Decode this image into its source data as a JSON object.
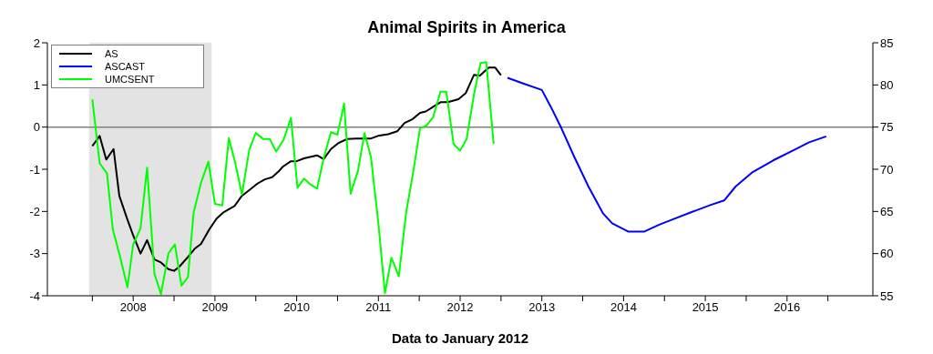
{
  "chart_data": {
    "type": "line",
    "title": "Animal Spirits in America",
    "xlabel": "Data to January 2012",
    "xlim": [
      2007.45,
      2017.55
    ],
    "xticks": [
      {
        "value": 2008,
        "label": null
      },
      {
        "value": 2008.5,
        "label": "2008"
      },
      {
        "value": 2009,
        "label": null
      },
      {
        "value": 2009.5,
        "label": "2009"
      },
      {
        "value": 2010,
        "label": null
      },
      {
        "value": 2010.5,
        "label": "2010"
      },
      {
        "value": 2011,
        "label": null
      },
      {
        "value": 2011.5,
        "label": "2011"
      },
      {
        "value": 2012,
        "label": null
      },
      {
        "value": 2012.5,
        "label": "2012"
      },
      {
        "value": 2013,
        "label": null
      },
      {
        "value": 2013.5,
        "label": "2013"
      },
      {
        "value": 2014,
        "label": null
      },
      {
        "value": 2014.5,
        "label": "2014"
      },
      {
        "value": 2015,
        "label": null
      },
      {
        "value": 2015.5,
        "label": "2015"
      },
      {
        "value": 2016,
        "label": null
      },
      {
        "value": 2016.5,
        "label": "2016"
      },
      {
        "value": 2017,
        "label": null
      }
    ],
    "ylim": [
      -4,
      2
    ],
    "yticks": [
      -4,
      -3,
      -2,
      -1,
      0,
      1,
      2
    ],
    "y2lim": [
      55,
      85
    ],
    "y2ticks": [
      55,
      60,
      65,
      70,
      75,
      80,
      85
    ],
    "grid": false,
    "legend": "top left",
    "marker": "none",
    "line_style": "solid",
    "ref_lines": [
      {
        "axis": "y",
        "value": 0,
        "color": "#808080"
      }
    ],
    "bands": [
      {
        "axis": "x",
        "from": 2007.96,
        "to": 2009.46,
        "color": "#e3e3e3"
      }
    ],
    "series": [
      {
        "name": "AS",
        "color": "#000000",
        "x": [
          2008.0,
          2008.09,
          2008.17,
          2008.26,
          2008.33,
          2008.42,
          2008.5,
          2008.59,
          2008.67,
          2008.76,
          2008.84,
          2008.93,
          2009.0,
          2009.06,
          2009.17,
          2009.25,
          2009.33,
          2009.43,
          2009.52,
          2009.6,
          2009.74,
          2009.83,
          2009.93,
          2010.02,
          2010.11,
          2010.2,
          2010.28,
          2010.33,
          2010.43,
          2010.5,
          2010.59,
          2010.75,
          2010.83,
          2010.92,
          2011.01,
          2011.12,
          2011.23,
          2011.34,
          2011.41,
          2011.51,
          2011.62,
          2011.73,
          2011.82,
          2011.92,
          2012.01,
          2012.08,
          2012.17,
          2012.26,
          2012.35,
          2012.48,
          2012.57,
          2012.67,
          2012.74,
          2012.85,
          2012.93,
          2013.0
        ],
        "values": [
          -0.45,
          -0.21,
          -0.77,
          -0.52,
          -1.63,
          -2.14,
          -2.57,
          -3.0,
          -2.68,
          -3.14,
          -3.21,
          -3.37,
          -3.41,
          -3.32,
          -3.08,
          -2.89,
          -2.77,
          -2.43,
          -2.17,
          -2.03,
          -1.87,
          -1.63,
          -1.48,
          -1.34,
          -1.24,
          -1.19,
          -1.05,
          -0.94,
          -0.81,
          -0.81,
          -0.74,
          -0.67,
          -0.76,
          -0.52,
          -0.38,
          -0.28,
          -0.27,
          -0.27,
          -0.27,
          -0.2,
          -0.17,
          -0.1,
          0.1,
          0.19,
          0.34,
          0.37,
          0.48,
          0.59,
          0.59,
          0.66,
          0.81,
          1.24,
          1.22,
          1.41,
          1.41,
          1.23
        ]
      },
      {
        "name": "ASCAST",
        "color": "#0000ff",
        "x": [
          2013.08,
          2013.28,
          2013.5,
          2013.61,
          2013.74,
          2013.9,
          2014.07,
          2014.25,
          2014.36,
          2014.56,
          2014.75,
          2014.93,
          2015.1,
          2015.34,
          2015.56,
          2015.73,
          2015.87,
          2016.07,
          2016.33,
          2016.59,
          2016.77,
          2016.98
        ],
        "values": [
          1.17,
          1.03,
          0.88,
          0.48,
          -0.03,
          -0.72,
          -1.41,
          -2.05,
          -2.28,
          -2.48,
          -2.48,
          -2.32,
          -2.19,
          -2.01,
          -1.85,
          -1.74,
          -1.41,
          -1.08,
          -0.79,
          -0.54,
          -0.36,
          -0.22
        ]
      },
      {
        "name": "UMCSENT",
        "color": "#00ff00",
        "axis": "y2",
        "x": [
          2008.0,
          2008.09,
          2008.18,
          2008.25,
          2008.34,
          2008.43,
          2008.5,
          2008.59,
          2008.67,
          2008.76,
          2008.84,
          2008.93,
          2009.01,
          2009.09,
          2009.17,
          2009.24,
          2009.33,
          2009.42,
          2009.5,
          2009.59,
          2009.67,
          2009.75,
          2009.83,
          2009.92,
          2010.0,
          2010.09,
          2010.17,
          2010.25,
          2010.34,
          2010.43,
          2010.51,
          2010.59,
          2010.67,
          2010.75,
          2010.83,
          2010.92,
          2011.0,
          2011.08,
          2011.16,
          2011.25,
          2011.33,
          2011.41,
          2011.5,
          2011.58,
          2011.66,
          2011.75,
          2011.84,
          2011.93,
          2012.01,
          2012.09,
          2012.17,
          2012.26,
          2012.33,
          2012.42,
          2012.5,
          2012.58,
          2012.67,
          2012.75,
          2012.82,
          2012.91
        ],
        "values": [
          78.3,
          70.7,
          69.5,
          62.9,
          59.6,
          56.0,
          61.1,
          63.0,
          70.2,
          57.6,
          55.2,
          60.0,
          61.1,
          56.2,
          57.2,
          64.9,
          68.4,
          70.9,
          65.9,
          65.7,
          73.7,
          70.7,
          67.0,
          72.3,
          74.3,
          73.6,
          73.6,
          72.1,
          73.5,
          76.1,
          67.8,
          68.9,
          68.2,
          67.7,
          71.3,
          74.4,
          74.1,
          77.8,
          67.1,
          69.8,
          74.3,
          71.4,
          63.6,
          55.3,
          59.5,
          57.3,
          64.9,
          69.9,
          74.9,
          75.2,
          76.2,
          79.2,
          79.2,
          73.0,
          72.2,
          73.6,
          78.9,
          82.6,
          82.7,
          73.0
        ]
      }
    ]
  }
}
